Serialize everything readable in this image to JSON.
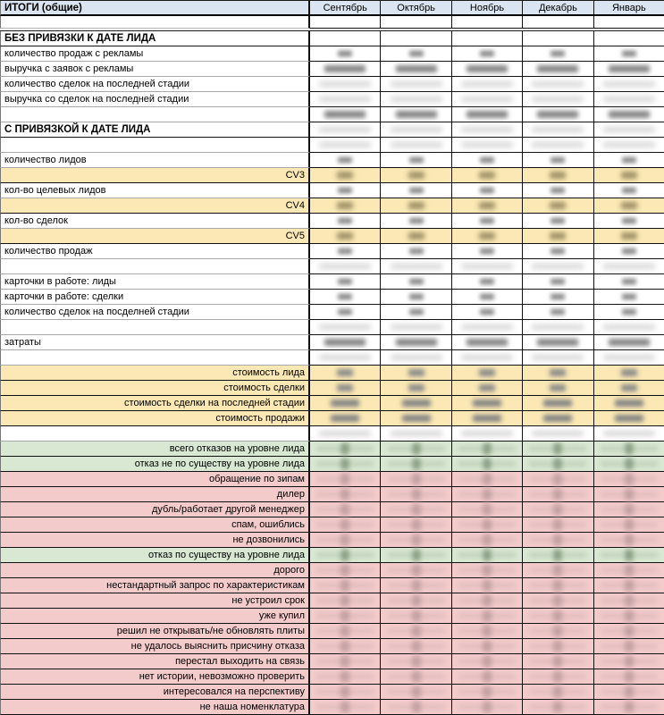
{
  "sheet": {
    "title": "ИТОГИ (общие)",
    "months": [
      "Сентябрь",
      "Октябрь",
      "Ноябрь",
      "Декабрь",
      "Январь"
    ],
    "colors": {
      "header_bg": "#dbe5f1",
      "cv_yellow": "#fbe8b4",
      "green": "#d9e8d3",
      "pink": "#f4cbcb",
      "grid": "#111111"
    },
    "note": "все числовые значения в ячейках месяцев размыты (скрыты)",
    "rows": [
      {
        "label": "",
        "style": "spacer14",
        "blur": "none"
      },
      {
        "style": "gap"
      },
      {
        "label": "БЕЗ ПРИВЯЗКИ К ДАТЕ ЛИДА",
        "style": "section",
        "blur": "none"
      },
      {
        "label": "количество продаж с рекламы",
        "style": "plain",
        "blur": "dot"
      },
      {
        "label": "выручка с заявок с рекламы",
        "style": "plain",
        "blur": "wide"
      },
      {
        "label": "количество сделок на последней стадии",
        "style": "plain",
        "blur": "faint"
      },
      {
        "label": "выручка со сделок на последней стадии",
        "style": "plain",
        "blur": "faint"
      },
      {
        "label": "",
        "style": "plain",
        "blur": "wide"
      },
      {
        "label": "С ПРИВЯЗКОЙ К ДАТЕ ЛИДА",
        "style": "section",
        "blur": "faint"
      },
      {
        "label": "",
        "style": "plain",
        "blur": "faint"
      },
      {
        "label": "количество лидов",
        "style": "plain",
        "blur": "dot"
      },
      {
        "label": "CV3",
        "style": "cv",
        "blur": "cvdot"
      },
      {
        "label": "кол-во целевых лидов",
        "style": "plain",
        "blur": "dot"
      },
      {
        "label": "CV4",
        "style": "cv",
        "blur": "cvdot"
      },
      {
        "label": "кол-во сделок",
        "style": "plain",
        "blur": "dot"
      },
      {
        "label": "CV5",
        "style": "cv",
        "blur": "cvdot"
      },
      {
        "label": "количество продаж",
        "style": "plain",
        "blur": "dot"
      },
      {
        "label": "",
        "style": "plain",
        "blur": "faint"
      },
      {
        "label": "карточки в работе: лиды",
        "style": "plain",
        "blur": "dot"
      },
      {
        "label": "карточки в работе: сделки",
        "style": "plain",
        "blur": "dot"
      },
      {
        "label": "количество сделок на посделней стадии",
        "style": "plain",
        "blur": "dot"
      },
      {
        "label": "",
        "style": "plain",
        "blur": "faint"
      },
      {
        "label": "затраты",
        "style": "plain",
        "blur": "wide"
      },
      {
        "label": "",
        "style": "plain",
        "blur": "faint"
      },
      {
        "label": "стоимость лида",
        "style": "cost",
        "blur": "costdot"
      },
      {
        "label": "стоимость сделки",
        "style": "cost",
        "blur": "costdot"
      },
      {
        "label": "стоимость сделки на последней стадии",
        "style": "cost",
        "blur": "costwide"
      },
      {
        "label": "стоимость продажи",
        "style": "cost",
        "blur": "costwide"
      },
      {
        "label": "",
        "style": "plain",
        "blur": "faint"
      },
      {
        "label": "всего отказов на уровне лида",
        "style": "green",
        "blur": "greendot"
      },
      {
        "label": "отказ не по существу на уровне лида",
        "style": "green",
        "blur": "greendot"
      },
      {
        "label": "обращение по зипам",
        "style": "pink",
        "blur": "pinkdot"
      },
      {
        "label": "дилер",
        "style": "pink",
        "blur": "pinkdot"
      },
      {
        "label": "дубль/работает другой менеджер",
        "style": "pink",
        "blur": "pinkdot"
      },
      {
        "label": "спам, ошиблись",
        "style": "pink",
        "blur": "pinkdot"
      },
      {
        "label": "не дозвонились",
        "style": "pink",
        "blur": "pinkdot"
      },
      {
        "label": "отказ по существу на уровне лида",
        "style": "green",
        "blur": "greendot"
      },
      {
        "label": "дорого",
        "style": "pink",
        "blur": "pinkdot"
      },
      {
        "label": "нестандартный запрос по характеристикам",
        "style": "pink",
        "blur": "pinkdot"
      },
      {
        "label": "не устроил срок",
        "style": "pink",
        "blur": "pinkdot"
      },
      {
        "label": "уже купил",
        "style": "pink",
        "blur": "pinkdot"
      },
      {
        "label": "решил не открывать/не обновлять плиты",
        "style": "pink",
        "blur": "pinkdot"
      },
      {
        "label": "не удалось выяснить присчину отказа",
        "style": "pink",
        "blur": "pinkdot"
      },
      {
        "label": "перестал выходить на связь",
        "style": "pink",
        "blur": "pinkdot"
      },
      {
        "label": "нет истории, невозможно проверить",
        "style": "pink",
        "blur": "pinkdot"
      },
      {
        "label": "интересовался на перспективу",
        "style": "pink",
        "blur": "pinkdot"
      },
      {
        "label": "не наша номенклатура",
        "style": "pink",
        "blur": "pinkdot"
      }
    ]
  }
}
